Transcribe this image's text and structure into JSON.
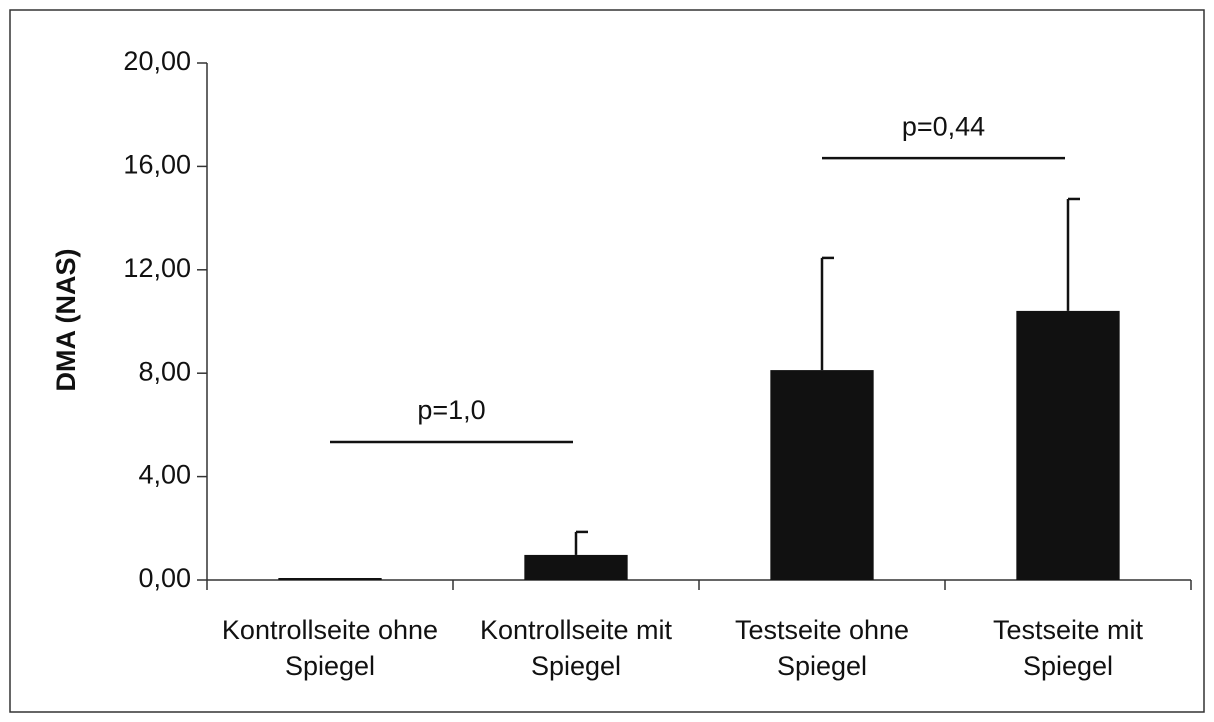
{
  "chart_data": {
    "type": "bar",
    "y_label": "DMA (NAS)",
    "categories": [
      "Kontrollseite ohne Spiegel",
      "Kontrollseite mit Spiegel",
      "Testseite ohne Spiegel",
      "Testseite mit Spiegel"
    ],
    "values": [
      0.03,
      0.97,
      8.12,
      10.41
    ],
    "errors": [
      0,
      0.89,
      4.34,
      4.33
    ],
    "color": "#111111",
    "ylim": [
      0,
      20
    ],
    "yticks": [
      {
        "value": 0,
        "label": "0,00"
      },
      {
        "value": 4,
        "label": "4,00"
      },
      {
        "value": 8,
        "label": "8,00"
      },
      {
        "value": 12,
        "label": "12,00"
      },
      {
        "value": 16,
        "label": "16,00"
      },
      {
        "value": 20,
        "label": "20,00"
      }
    ],
    "annotations": [
      {
        "text": "p=1,0",
        "y": 5.34
      },
      {
        "text": "p=0,44",
        "y": 16.32
      }
    ]
  }
}
